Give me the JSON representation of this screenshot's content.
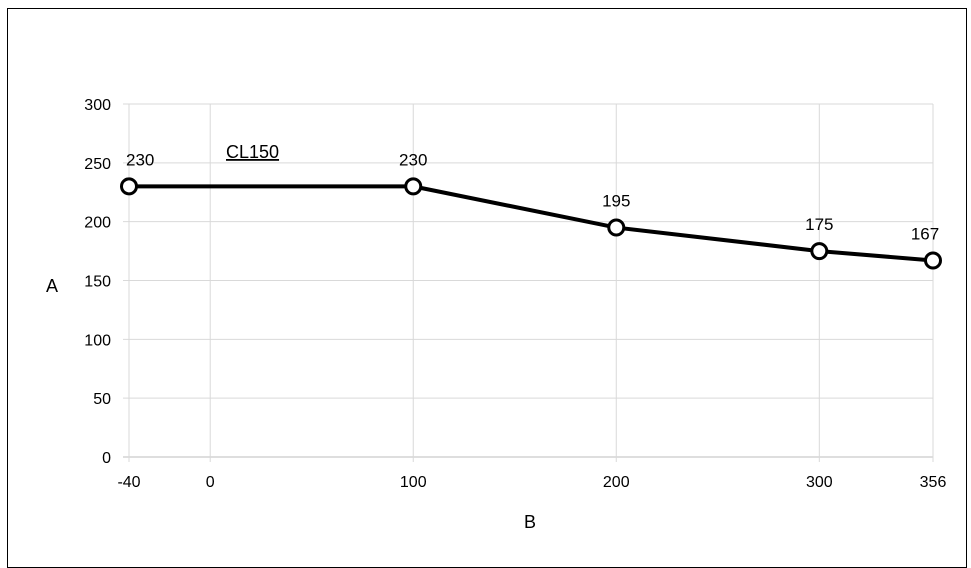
{
  "chart_data": {
    "type": "line",
    "title": "",
    "xlabel": "B",
    "ylabel": "A",
    "xlim": [
      -40,
      356
    ],
    "ylim": [
      0,
      300
    ],
    "x_ticks": [
      -40,
      0,
      100,
      200,
      300,
      356
    ],
    "y_ticks": [
      0,
      50,
      100,
      150,
      200,
      250,
      300
    ],
    "grid": true,
    "legend": "none",
    "annotation": "CL150",
    "line_color": "#000000",
    "series": [
      {
        "x": [
          -40,
          100,
          200,
          300,
          356
        ],
        "y": [
          230,
          230,
          195,
          175,
          167
        ],
        "labels": [
          "230",
          "230",
          "195",
          "175",
          "167"
        ]
      }
    ]
  }
}
